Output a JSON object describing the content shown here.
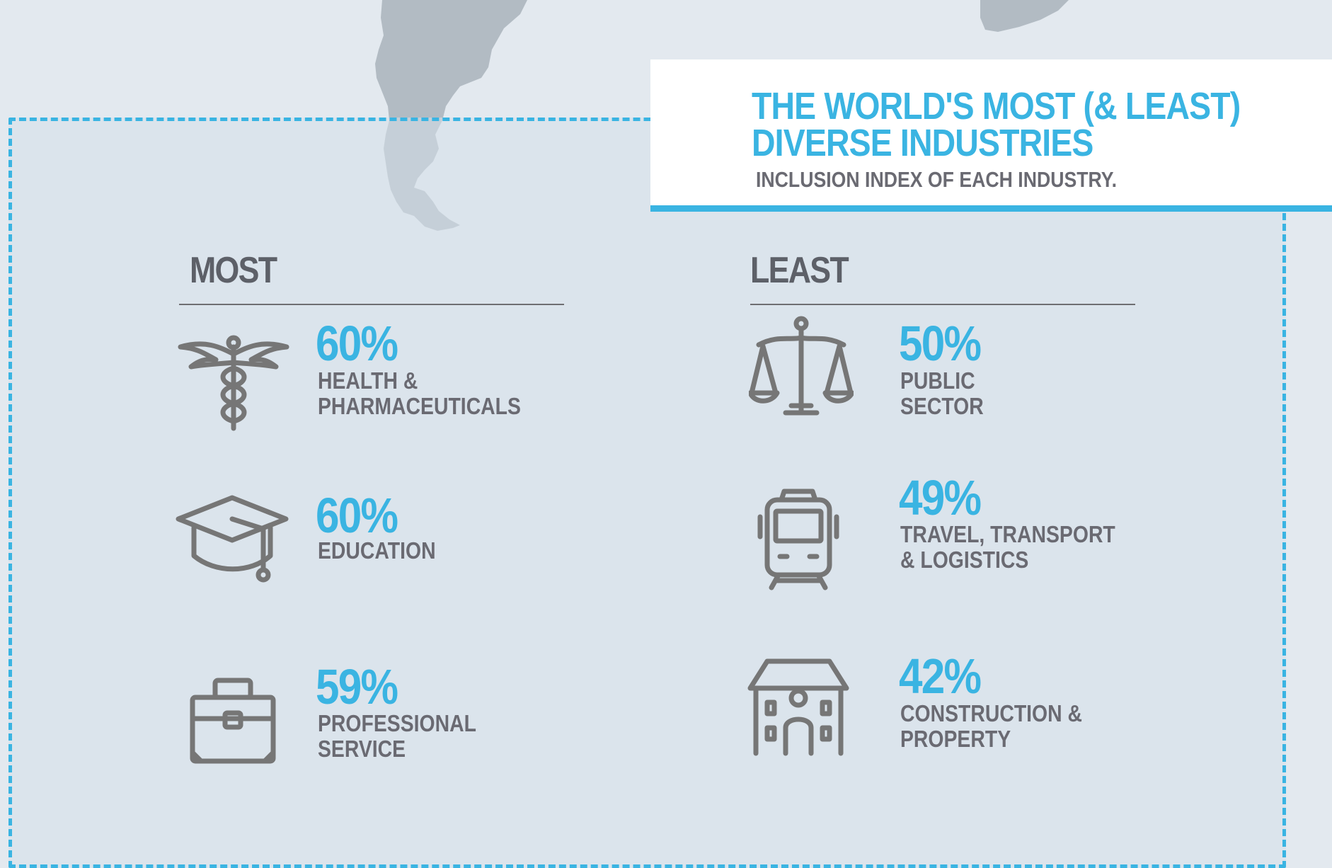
{
  "header": {
    "title_line1": "THE WORLD'S MOST (& LEAST)",
    "title_line2": "DIVERSE INDUSTRIES",
    "subtitle": "INCLUSION INDEX OF EACH INDUSTRY."
  },
  "most": {
    "heading": "MOST",
    "items": [
      {
        "percent": "60%",
        "line1": "HEALTH &",
        "line2": "PHARMACEUTICALS",
        "icon": "caduceus-icon"
      },
      {
        "percent": "60%",
        "line1": "EDUCATION",
        "line2": "",
        "icon": "graduation-cap-icon"
      },
      {
        "percent": "59%",
        "line1": "PROFESSIONAL",
        "line2": "SERVICE",
        "icon": "briefcase-icon"
      }
    ]
  },
  "least": {
    "heading": "LEAST",
    "items": [
      {
        "percent": "50%",
        "line1": "PUBLIC",
        "line2": "SECTOR",
        "icon": "scales-icon"
      },
      {
        "percent": "49%",
        "line1": "TRAVEL, TRANSPORT",
        "line2": "& LOGISTICS",
        "icon": "train-icon"
      },
      {
        "percent": "42%",
        "line1": "CONSTRUCTION &",
        "line2": "PROPERTY",
        "icon": "house-icon"
      }
    ]
  },
  "colors": {
    "accent": "#3ab4e2",
    "text_gray": "#6a6a72",
    "heading_gray": "#5d6068",
    "map_gray": "#a9b3bb",
    "background": "#e3e9ef"
  }
}
